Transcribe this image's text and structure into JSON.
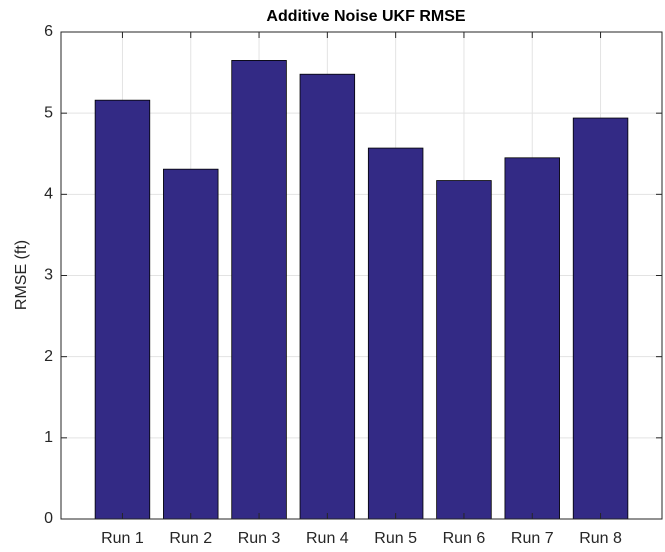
{
  "chart_data": {
    "type": "bar",
    "title": "Additive Noise UKF RMSE",
    "y_label": "RMSE (ft)",
    "categories": [
      "Run 1",
      "Run 2",
      "Run 3",
      "Run 4",
      "Run 5",
      "Run 6",
      "Run 7",
      "Run 8"
    ],
    "values": [
      5.16,
      4.31,
      5.65,
      5.48,
      4.57,
      4.17,
      4.45,
      4.94
    ],
    "color": "#332a85",
    "ylim": [
      0,
      6
    ],
    "yticks": [
      0,
      1,
      2,
      3,
      4,
      5,
      6
    ],
    "grid": true
  }
}
